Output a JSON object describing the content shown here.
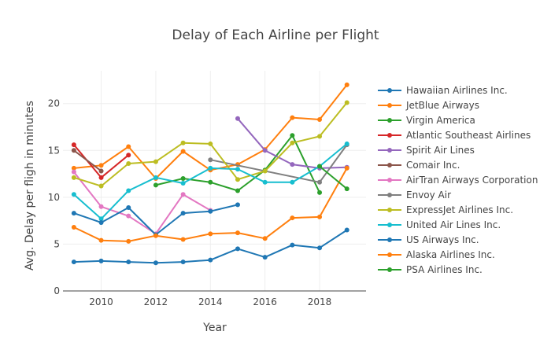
{
  "chart_data": {
    "type": "line",
    "title": "Delay of Each Airline per Flight",
    "xlabel": "Year",
    "ylabel": "Avg. Delay per fligh in minutes",
    "xlim": [
      2008.6,
      2019.7
    ],
    "ylim": [
      0,
      23.5
    ],
    "x_ticks": [
      2010,
      2012,
      2014,
      2016,
      2018
    ],
    "y_ticks": [
      0,
      5,
      10,
      15,
      20
    ],
    "grid": true,
    "legend_position": "right",
    "series": [
      {
        "name": "Hawaiian Airlines Inc.",
        "color": "#1f77b4",
        "x": [
          2009,
          2010,
          2011,
          2012,
          2013,
          2014,
          2015,
          2016,
          2017,
          2018,
          2019
        ],
        "y": [
          3.1,
          3.2,
          3.1,
          3.0,
          3.1,
          3.3,
          4.5,
          3.6,
          4.9,
          4.6,
          6.5
        ]
      },
      {
        "name": "JetBlue Airways",
        "color": "#ff7f0e",
        "x": [
          2009,
          2010,
          2011,
          2012,
          2013,
          2014,
          2015,
          2016,
          2017,
          2018,
          2019
        ],
        "y": [
          13.1,
          13.4,
          15.4,
          12.0,
          14.9,
          12.9,
          13.5,
          15.1,
          18.5,
          18.3,
          22.0
        ]
      },
      {
        "name": "Virgin America",
        "color": "#2ca02c",
        "x": [
          2012,
          2013,
          2014,
          2015,
          2016,
          2017,
          2018
        ],
        "y": [
          11.3,
          12.0,
          11.6,
          10.7,
          12.9,
          16.6,
          10.5
        ]
      },
      {
        "name": "Atlantic Southeast Airlines",
        "color": "#d62728",
        "x": [
          2009,
          2010,
          2011
        ],
        "y": [
          15.6,
          12.1,
          14.5
        ]
      },
      {
        "name": "Spirit Air Lines",
        "color": "#9467bd",
        "x": [
          2015,
          2016,
          2017,
          2018,
          2019
        ],
        "y": [
          18.4,
          15.0,
          13.5,
          13.1,
          13.2
        ]
      },
      {
        "name": "Comair Inc.",
        "color": "#8c564b",
        "x": [
          2009,
          2010
        ],
        "y": [
          15.0,
          12.8
        ]
      },
      {
        "name": "AirTran Airways Corporation",
        "color": "#e377c2",
        "x": [
          2009,
          2010,
          2011,
          2012,
          2013,
          2014
        ],
        "y": [
          12.7,
          9.0,
          8.0,
          6.1,
          10.3,
          8.6
        ]
      },
      {
        "name": "Envoy Air",
        "color": "#7f7f7f",
        "x": [
          2014,
          2018,
          2019
        ],
        "y": [
          14.0,
          11.6,
          15.6
        ]
      },
      {
        "name": "ExpressJet Airlines Inc.",
        "color": "#bcbd22",
        "x": [
          2009,
          2010,
          2011,
          2012,
          2013,
          2014,
          2015,
          2016,
          2017,
          2018,
          2019
        ],
        "y": [
          12.1,
          11.2,
          13.6,
          13.8,
          15.8,
          15.7,
          11.9,
          12.8,
          15.8,
          16.5,
          20.1
        ]
      },
      {
        "name": "United Air Lines Inc.",
        "color": "#17becf",
        "x": [
          2009,
          2010,
          2011,
          2012,
          2013,
          2014,
          2015,
          2016,
          2017,
          2018,
          2019
        ],
        "y": [
          10.3,
          7.7,
          10.7,
          12.1,
          11.5,
          13.1,
          13.0,
          11.6,
          11.6,
          13.3,
          15.7
        ]
      },
      {
        "name": "US Airways Inc.",
        "color": "#1f77b4",
        "x": [
          2009,
          2010,
          2011,
          2012,
          2013,
          2014,
          2015
        ],
        "y": [
          8.3,
          7.3,
          8.9,
          6.0,
          8.3,
          8.5,
          9.2
        ]
      },
      {
        "name": "Alaska Airlines Inc.",
        "color": "#ff7f0e",
        "x": [
          2009,
          2010,
          2011,
          2012,
          2013,
          2014,
          2015,
          2016,
          2017,
          2018,
          2019
        ],
        "y": [
          6.8,
          5.4,
          5.3,
          5.9,
          5.5,
          6.1,
          6.2,
          5.6,
          7.8,
          7.9,
          13.1
        ]
      },
      {
        "name": "PSA Airlines Inc.",
        "color": "#2ca02c",
        "x": [
          2018,
          2019
        ],
        "y": [
          13.3,
          10.9
        ]
      }
    ]
  }
}
